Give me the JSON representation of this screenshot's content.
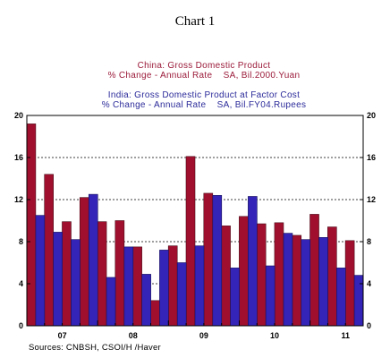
{
  "title": "Chart 1",
  "legend": {
    "china_line1": "China: Gross Domestic Product",
    "china_line2": "% Change - Annual Rate    SA, Bil.2000.Yuan",
    "india_line1": "India: Gross Domestic Product at Factor Cost",
    "india_line2": "% Change - Annual Rate    SA, Bil.FY04.Rupees"
  },
  "source": "Sources:  CNBSH, CSOI/H /Haver",
  "colors": {
    "china": "#a0102e",
    "india": "#3424b8"
  },
  "chart_data": {
    "type": "bar",
    "title": "Chart 1",
    "series": [
      {
        "name": "China: Gross Domestic Product",
        "values": [
          19.2,
          14.4,
          9.9,
          12.2,
          9.9,
          10.0,
          7.5,
          2.4,
          7.6,
          16.1,
          12.6,
          9.5,
          10.4,
          9.7,
          9.8,
          8.6,
          10.6,
          9.4,
          8.1
        ]
      },
      {
        "name": "India: Gross Domestic Product at Factor Cost",
        "values": [
          10.5,
          8.9,
          8.2,
          12.5,
          4.6,
          7.5,
          4.9,
          7.2,
          6.0,
          7.6,
          12.4,
          5.5,
          12.3,
          5.7,
          8.8,
          8.2,
          8.4,
          5.5,
          4.8
        ]
      }
    ],
    "x_tick_labels": [
      "07",
      "08",
      "09",
      "10",
      "11"
    ],
    "y_ticks": [
      0,
      4,
      8,
      12,
      16,
      20
    ],
    "ylim": [
      0,
      20
    ],
    "grid": "dotted horizontal"
  }
}
